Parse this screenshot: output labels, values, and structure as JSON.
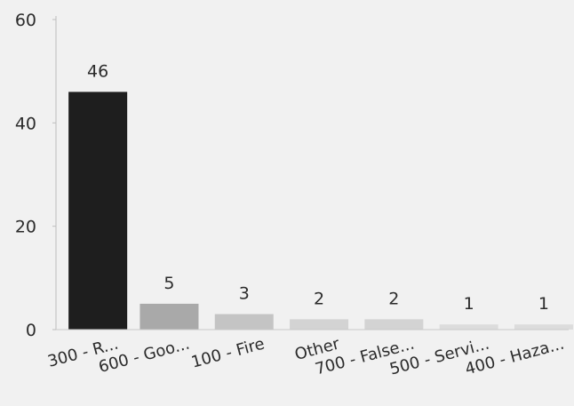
{
  "chart_data": {
    "type": "bar",
    "categories": [
      "300 - R...",
      "600 - Goo...",
      "100 - Fire",
      "Other",
      "700 - False...",
      "500 - Servi...",
      "400 - Haza..."
    ],
    "values": [
      46,
      5,
      3,
      2,
      2,
      1,
      1
    ],
    "data_labels": [
      "46",
      "5",
      "3",
      "2",
      "2",
      "1",
      "1"
    ],
    "ylim": [
      0,
      60
    ],
    "yticks": [
      0,
      20,
      40,
      60
    ],
    "ytick_labels": [
      "0",
      "20",
      "40",
      "60"
    ],
    "title": "",
    "xlabel": "",
    "ylabel": "",
    "grid": false,
    "legend": "none",
    "colors": [
      "#1e1e1e",
      "#a9a9a9",
      "#c4c4c4",
      "#d3d3d3",
      "#d3d3d3",
      "#dcdcdc",
      "#dcdcdc"
    ]
  }
}
